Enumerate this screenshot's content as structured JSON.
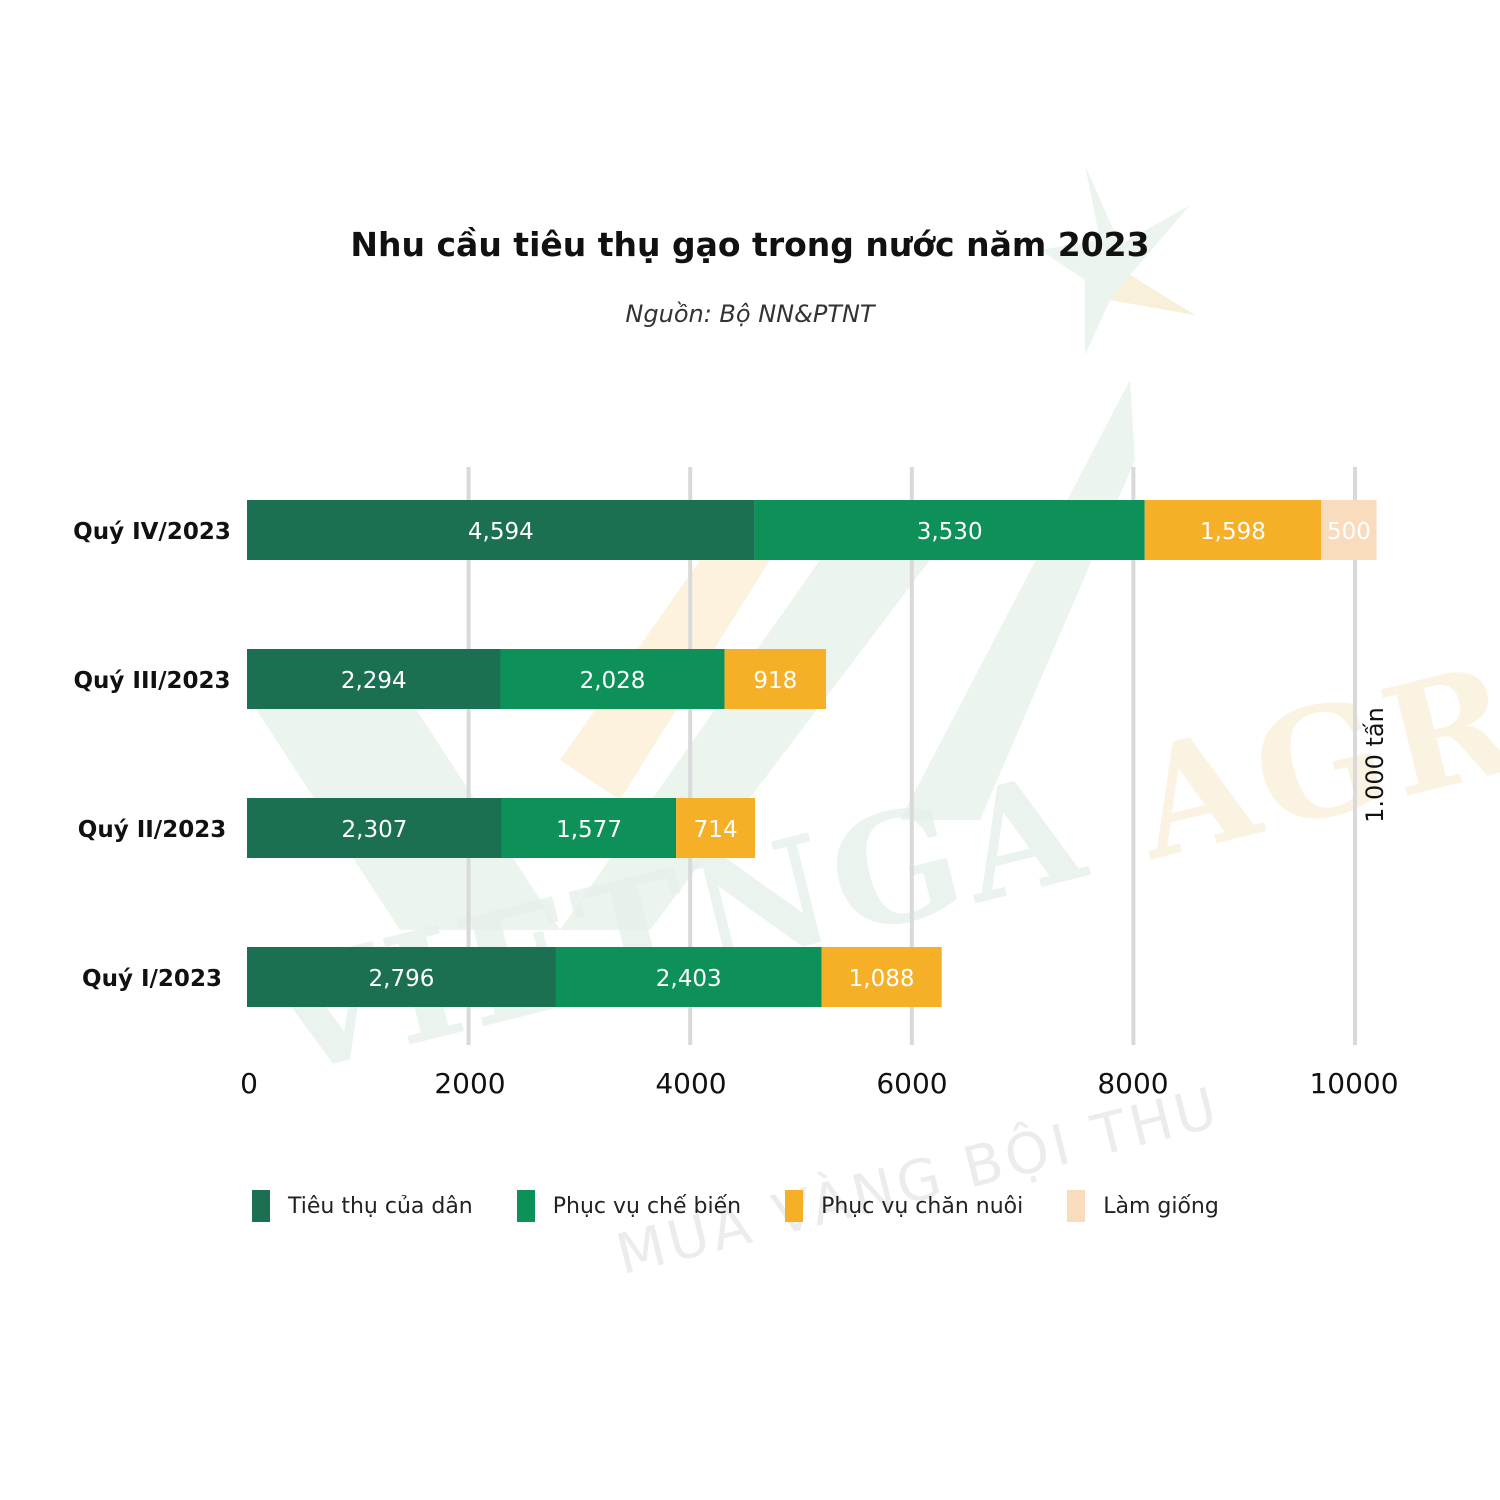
{
  "title": "Nhu cầu tiêu thụ gạo trong nước năm 2023",
  "subtitle": "Nguồn: Bộ NN&PTNT",
  "unit": "1.000 tấn",
  "watermark": {
    "brand": "VIETNGA",
    "brand_accent": "AGRI",
    "tagline": "MÙA VÀNG BỘI THU"
  },
  "colors": {
    "tieu_thu": "#1a7051",
    "che_bien": "#0d9158",
    "chan_nuoi": "#f6b028",
    "giong": "#f8dcbd",
    "grid": "#d9d9d9"
  },
  "chart_data": {
    "type": "bar",
    "orientation": "horizontal",
    "stacked": true,
    "categories": [
      "Quý IV/2023",
      "Quý III/2023",
      "Quý II/2023",
      "Quý I/2023"
    ],
    "series": [
      {
        "name": "Tiêu thụ của dân",
        "color": "#1a7051",
        "values": [
          4594,
          2294,
          2307,
          2796
        ],
        "labels": [
          "4,594",
          "2,294",
          "2,307",
          "2,796"
        ]
      },
      {
        "name": "Phục vụ chế biến",
        "color": "#0d9158",
        "values": [
          3530,
          2028,
          1577,
          2403
        ],
        "labels": [
          "3,530",
          "2,028",
          "1,577",
          "2,403"
        ]
      },
      {
        "name": "Phục vụ chăn nuôi",
        "color": "#f6b028",
        "values": [
          1598,
          918,
          714,
          1088
        ],
        "labels": [
          "1,598",
          "918",
          "714",
          "1,088"
        ]
      },
      {
        "name": "Làm giống",
        "color": "#f8dcbd",
        "values": [
          500,
          0,
          0,
          0
        ],
        "labels": [
          "500",
          "",
          "",
          ""
        ]
      }
    ],
    "x_ticks": [
      "0",
      "2000",
      "4000",
      "6000",
      "8000",
      "10000"
    ],
    "xlim": [
      0,
      10000
    ],
    "grid": true,
    "legend_position": "bottom"
  }
}
